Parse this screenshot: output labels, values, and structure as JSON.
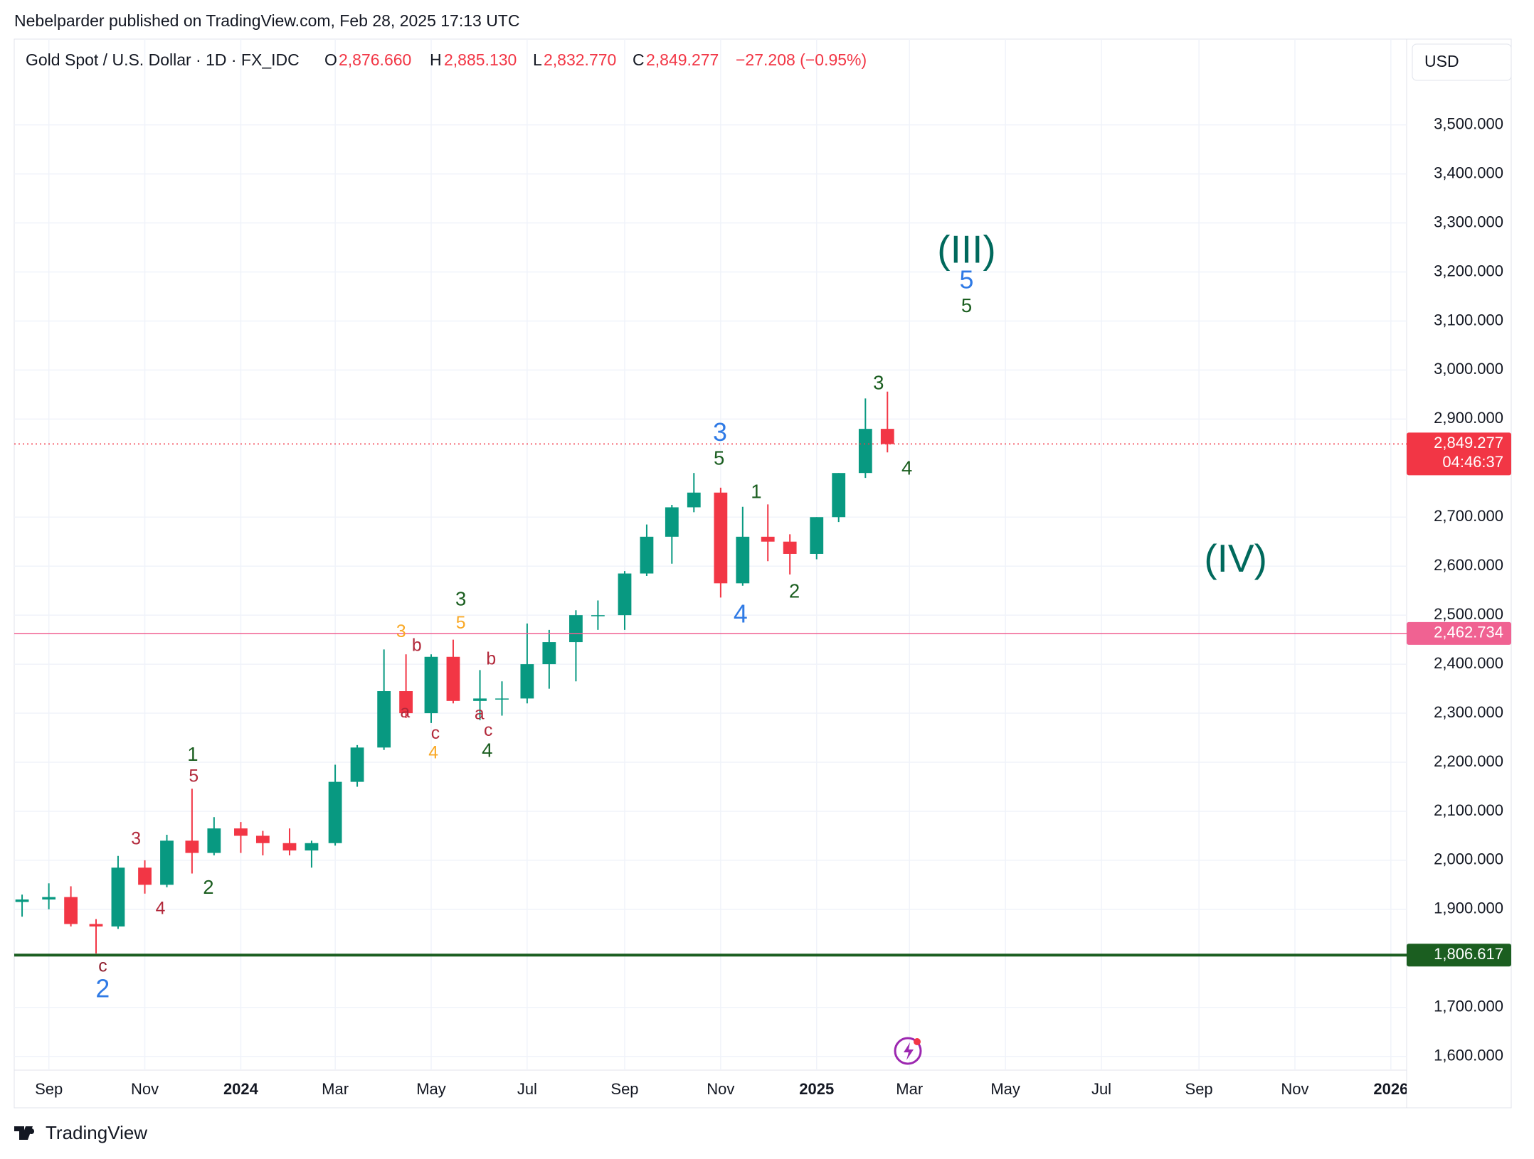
{
  "header": {
    "publisher": "Nebelparder published on TradingView.com, Feb 28, 2025 17:13 UTC",
    "symbol": "Gold Spot / U.S. Dollar · 1D · FX_IDC",
    "open": {
      "label": "O",
      "value": "2,876.660"
    },
    "high": {
      "label": "H",
      "value": "2,885.130"
    },
    "low": {
      "label": "L",
      "value": "2,832.770"
    },
    "close": {
      "label": "C",
      "value": "2,849.277"
    },
    "change": "−27.208 (−0.95%)",
    "currency": "USD"
  },
  "footer": {
    "brand": "TradingView"
  },
  "chart_data": {
    "type": "ohlc",
    "up_color": "#089981",
    "down_color": "#f23645",
    "grid": true,
    "x": [
      "2023-08-15",
      "2023-09-01",
      "2023-09-15",
      "2023-10-01",
      "2023-10-15",
      "2023-11-01",
      "2023-11-15",
      "2023-12-01",
      "2023-12-15",
      "2024-01-01",
      "2024-01-15",
      "2024-02-01",
      "2024-02-15",
      "2024-03-01",
      "2024-03-15",
      "2024-04-01",
      "2024-04-15",
      "2024-05-01",
      "2024-05-15",
      "2024-06-01",
      "2024-06-15",
      "2024-07-01",
      "2024-07-15",
      "2024-08-01",
      "2024-08-15",
      "2024-09-01",
      "2024-09-15",
      "2024-10-01",
      "2024-10-15",
      "2024-11-01",
      "2024-11-15",
      "2024-12-01",
      "2024-12-15",
      "2025-01-01",
      "2025-01-15",
      "2025-02-01",
      "2025-02-15"
    ],
    "open": [
      1915,
      1920,
      1925,
      1870,
      1865,
      1985,
      1950,
      2040,
      2015,
      2065,
      2050,
      2035,
      2020,
      2035,
      2160,
      2230,
      2345,
      2300,
      2415,
      2325,
      2330,
      2330,
      2400,
      2445,
      2500,
      2500,
      2585,
      2660,
      2720,
      2750,
      2565,
      2660,
      2650,
      2625,
      2700,
      2790,
      2880
    ],
    "high": [
      1930,
      1953,
      1947,
      1880,
      2009,
      2000,
      2052,
      2146,
      2088,
      2078,
      2060,
      2065,
      2040,
      2195,
      2235,
      2430,
      2420,
      2420,
      2450,
      2388,
      2365,
      2483,
      2470,
      2510,
      2530,
      2590,
      2685,
      2725,
      2790,
      2760,
      2721,
      2726,
      2665,
      2700,
      2790,
      2942,
      2956
    ],
    "low": [
      1885,
      1900,
      1865,
      1810,
      1860,
      1932,
      1945,
      1973,
      2010,
      2015,
      2010,
      2010,
      1985,
      2030,
      2150,
      2225,
      2290,
      2280,
      2320,
      2286,
      2295,
      2320,
      2350,
      2365,
      2470,
      2470,
      2580,
      2605,
      2710,
      2536,
      2560,
      2610,
      2583,
      2614,
      2690,
      2780,
      2832
    ],
    "close": [
      1920,
      1925,
      1870,
      1865,
      1985,
      1950,
      2040,
      2015,
      2065,
      2050,
      2035,
      2020,
      2035,
      2160,
      2230,
      2345,
      2300,
      2415,
      2325,
      2330,
      2330,
      2400,
      2445,
      2500,
      2500,
      2585,
      2660,
      2720,
      2750,
      2565,
      2660,
      2650,
      2625,
      2700,
      2790,
      2880,
      2849
    ],
    "xlim": [
      "2023-08-10",
      "2026-01-11"
    ],
    "xticks": [
      {
        "value": "2023-09-01",
        "label": "Sep"
      },
      {
        "value": "2023-11-01",
        "label": "Nov"
      },
      {
        "value": "2024-01-01",
        "label": "2024"
      },
      {
        "value": "2024-03-01",
        "label": "Mar"
      },
      {
        "value": "2024-05-01",
        "label": "May"
      },
      {
        "value": "2024-07-01",
        "label": "Jul"
      },
      {
        "value": "2024-09-01",
        "label": "Sep"
      },
      {
        "value": "2024-11-01",
        "label": "Nov"
      },
      {
        "value": "2025-01-01",
        "label": "2025"
      },
      {
        "value": "2025-03-01",
        "label": "Mar"
      },
      {
        "value": "2025-05-01",
        "label": "May"
      },
      {
        "value": "2025-07-01",
        "label": "Jul"
      },
      {
        "value": "2025-09-01",
        "label": "Sep"
      },
      {
        "value": "2025-11-01",
        "label": "Nov"
      },
      {
        "value": "2026-01-01",
        "label": "2026"
      }
    ],
    "ylim": [
      1572,
      3675
    ],
    "yticks": [
      {
        "value": 1600,
        "label": "1,600.000"
      },
      {
        "value": 1700,
        "label": "1,700.000"
      },
      {
        "value": 1900,
        "label": "1,900.000"
      },
      {
        "value": 2000,
        "label": "2,000.000"
      },
      {
        "value": 2100,
        "label": "2,100.000"
      },
      {
        "value": 2200,
        "label": "2,200.000"
      },
      {
        "value": 2300,
        "label": "2,300.000"
      },
      {
        "value": 2400,
        "label": "2,400.000"
      },
      {
        "value": 2500,
        "label": "2,500.000"
      },
      {
        "value": 2600,
        "label": "2,600.000"
      },
      {
        "value": 2700,
        "label": "2,700.000"
      },
      {
        "value": 2900,
        "label": "2,900.000"
      },
      {
        "value": 3000,
        "label": "3,000.000"
      },
      {
        "value": 3100,
        "label": "3,100.000"
      },
      {
        "value": 3200,
        "label": "3,200.000"
      },
      {
        "value": 3300,
        "label": "3,300.000"
      },
      {
        "value": 3400,
        "label": "3,400.000"
      },
      {
        "value": 3500,
        "label": "3,500.000"
      }
    ],
    "hlines": [
      {
        "value": 2849.277,
        "label": "2,849.277",
        "color": "#f23645",
        "style": "dotted",
        "countdown": "04:46:37"
      },
      {
        "value": 2462.734,
        "label": "2,462.734",
        "color": "#f06292",
        "style": "solid"
      },
      {
        "value": 1806.617,
        "label": "1,806.617",
        "color": "#1b5e20",
        "style": "thick"
      }
    ],
    "annotations": [
      {
        "text": "c",
        "color": "#8e1b2b"
      },
      {
        "text": "2",
        "color": "#2f7ae5"
      },
      {
        "text": "3",
        "color": "#b2283a"
      },
      {
        "text": "4",
        "color": "#b2283a"
      },
      {
        "text": "1",
        "color": "#1b5e20"
      },
      {
        "text": "5",
        "color": "#b2283a"
      },
      {
        "text": "2",
        "color": "#1b5e20"
      },
      {
        "text": "3",
        "color": "#f9a825"
      },
      {
        "text": "b",
        "color": "#b2283a"
      },
      {
        "text": "a",
        "color": "#b2283a"
      },
      {
        "text": "c",
        "color": "#b2283a"
      },
      {
        "text": "4",
        "color": "#f9a825"
      },
      {
        "text": "3",
        "color": "#1b5e20"
      },
      {
        "text": "5",
        "color": "#f9a825"
      },
      {
        "text": "b",
        "color": "#b2283a"
      },
      {
        "text": "a",
        "color": "#b2283a"
      },
      {
        "text": "c",
        "color": "#b2283a"
      },
      {
        "text": "4",
        "color": "#1b5e20"
      },
      {
        "text": "3",
        "color": "#2f7ae5"
      },
      {
        "text": "5",
        "color": "#1b5e20"
      },
      {
        "text": "4",
        "color": "#2f7ae5"
      },
      {
        "text": "1",
        "color": "#1b5e20"
      },
      {
        "text": "2",
        "color": "#1b5e20"
      },
      {
        "text": "3",
        "color": "#1b5e20"
      },
      {
        "text": "4",
        "color": "#1b5e20"
      },
      {
        "text": "(III)",
        "color": "#00695c"
      },
      {
        "text": "5",
        "color": "#2f7ae5"
      },
      {
        "text": "5",
        "color": "#1b5e20"
      },
      {
        "text": "(IV)",
        "color": "#00695c"
      }
    ]
  }
}
